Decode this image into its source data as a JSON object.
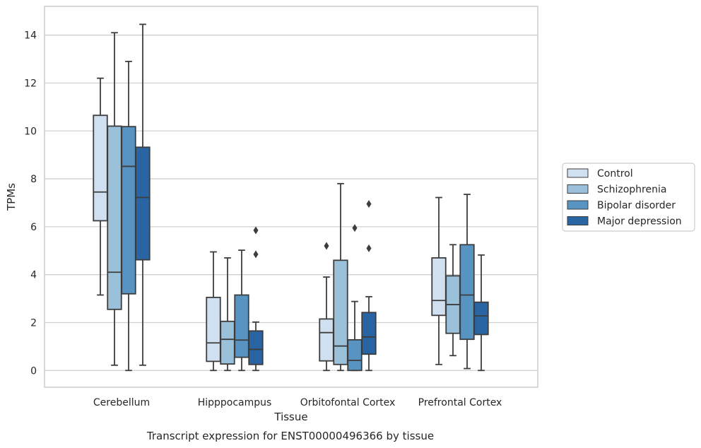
{
  "chart_data": {
    "type": "box",
    "title": "Transcript expression for ENST00000496366 by tissue",
    "xlabel": "Tissue",
    "ylabel": "TPMs",
    "ylim": [
      -0.7,
      15.2
    ],
    "yticks": [
      0,
      2,
      4,
      6,
      8,
      10,
      12,
      14
    ],
    "grid": "horizontal",
    "legend_position": "right",
    "categories": [
      "Cerebellum",
      "Hipppocampus",
      "Orbitofontal Cortex",
      "Prefrontal Cortex"
    ],
    "series": [
      {
        "name": "Control",
        "color": "#d1e0f0",
        "boxes": [
          {
            "whislo": 3.15,
            "q1": 6.25,
            "med": 7.45,
            "q3": 10.65,
            "whishi": 12.2,
            "fliers": []
          },
          {
            "whislo": 0.0,
            "q1": 0.38,
            "med": 1.15,
            "q3": 3.05,
            "whishi": 4.95,
            "fliers": []
          },
          {
            "whislo": 0.0,
            "q1": 0.4,
            "med": 1.58,
            "q3": 2.15,
            "whishi": 3.9,
            "fliers": [
              5.2
            ]
          },
          {
            "whislo": 0.25,
            "q1": 2.3,
            "med": 2.92,
            "q3": 4.7,
            "whishi": 7.22,
            "fliers": []
          }
        ]
      },
      {
        "name": "Schizophrenia",
        "color": "#9ac1d9",
        "boxes": [
          {
            "whislo": 0.22,
            "q1": 2.55,
            "med": 4.1,
            "q3": 10.2,
            "whishi": 14.1,
            "fliers": []
          },
          {
            "whislo": 0.0,
            "q1": 0.27,
            "med": 1.3,
            "q3": 2.05,
            "whishi": 4.7,
            "fliers": []
          },
          {
            "whislo": 0.0,
            "q1": 0.25,
            "med": 1.02,
            "q3": 4.6,
            "whishi": 7.8,
            "fliers": []
          },
          {
            "whislo": 0.62,
            "q1": 1.55,
            "med": 2.75,
            "q3": 3.95,
            "whishi": 5.25,
            "fliers": []
          }
        ]
      },
      {
        "name": "Bipolar disorder",
        "color": "#5894c2",
        "boxes": [
          {
            "whislo": 0.0,
            "q1": 3.2,
            "med": 8.52,
            "q3": 10.18,
            "whishi": 12.9,
            "fliers": []
          },
          {
            "whislo": 0.0,
            "q1": 0.55,
            "med": 1.27,
            "q3": 3.15,
            "whishi": 5.02,
            "fliers": []
          },
          {
            "whislo": 0.0,
            "q1": 0.0,
            "med": 0.42,
            "q3": 1.28,
            "whishi": 2.88,
            "fliers": [
              5.95
            ]
          },
          {
            "whislo": 0.08,
            "q1": 1.3,
            "med": 3.15,
            "q3": 5.25,
            "whishi": 7.35,
            "fliers": []
          }
        ]
      },
      {
        "name": "Major depression",
        "color": "#2a65a3",
        "boxes": [
          {
            "whislo": 0.22,
            "q1": 4.62,
            "med": 7.22,
            "q3": 9.32,
            "whishi": 14.45,
            "fliers": []
          },
          {
            "whislo": 0.0,
            "q1": 0.25,
            "med": 0.88,
            "q3": 1.65,
            "whishi": 2.02,
            "fliers": [
              4.85,
              5.85
            ]
          },
          {
            "whislo": 0.0,
            "q1": 0.68,
            "med": 1.4,
            "q3": 2.42,
            "whishi": 3.08,
            "fliers": [
              5.1,
              6.95
            ]
          },
          {
            "whislo": 0.0,
            "q1": 1.5,
            "med": 2.28,
            "q3": 2.85,
            "whishi": 4.82,
            "fliers": []
          }
        ]
      }
    ]
  }
}
